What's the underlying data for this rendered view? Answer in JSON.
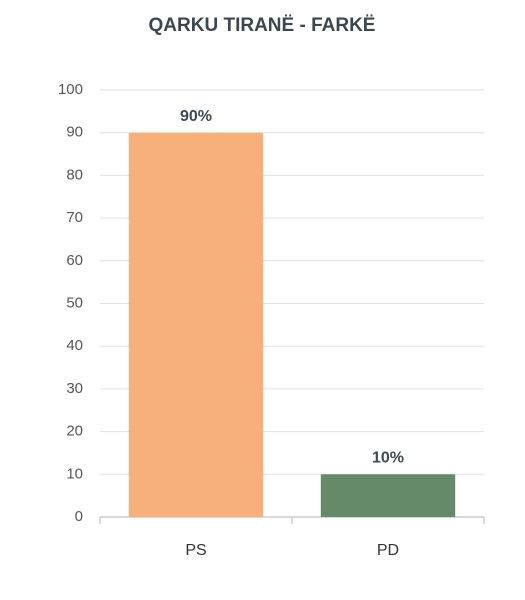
{
  "chart_data": {
    "type": "bar",
    "title": "QARKU TIRANË - FARKË",
    "categories": [
      "PS",
      "PD"
    ],
    "values": [
      90,
      10
    ],
    "value_labels": [
      "90%",
      "10%"
    ],
    "colors": [
      "#f8b07a",
      "#658a69"
    ],
    "ylim": [
      0,
      100
    ],
    "yticks": [
      0,
      10,
      20,
      30,
      40,
      50,
      60,
      70,
      80,
      90,
      100
    ],
    "grid": true
  }
}
